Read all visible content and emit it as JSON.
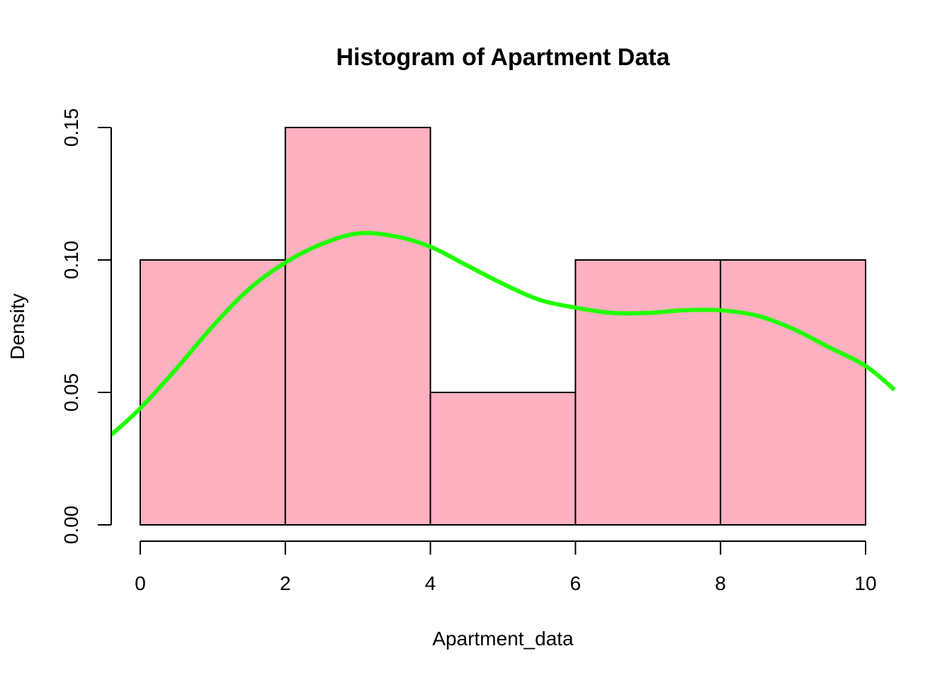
{
  "chart_data": {
    "type": "bar",
    "title": "Histogram of Apartment Data",
    "xlabel": "Apartment_data",
    "ylabel": "Density",
    "xlim": [
      0,
      10
    ],
    "ylim": [
      0,
      0.15
    ],
    "x_ticks": [
      0,
      2,
      4,
      6,
      8,
      10
    ],
    "x_tick_labels": [
      "0",
      "2",
      "4",
      "6",
      "8",
      "10"
    ],
    "y_ticks": [
      0,
      0.05,
      0.1,
      0.15
    ],
    "y_tick_labels": [
      "0.00",
      "0.05",
      "0.10",
      "0.15"
    ],
    "bins": [
      {
        "start": 0,
        "end": 2,
        "density": 0.1
      },
      {
        "start": 2,
        "end": 4,
        "density": 0.15
      },
      {
        "start": 4,
        "end": 6,
        "density": 0.05
      },
      {
        "start": 6,
        "end": 8,
        "density": 0.1
      },
      {
        "start": 8,
        "end": 10,
        "density": 0.1
      }
    ],
    "grid": false,
    "bar_color": "#FFB0C1",
    "density_curve": {
      "color": "#22FF00",
      "x": [
        -0.4,
        0,
        0.5,
        1,
        1.5,
        2,
        2.5,
        3,
        3.5,
        4,
        4.5,
        5,
        5.5,
        6,
        6.5,
        7,
        7.5,
        8,
        8.5,
        9,
        9.5,
        10,
        10.4
      ],
      "y": [
        0.034,
        0.044,
        0.059,
        0.075,
        0.089,
        0.099,
        0.106,
        0.11,
        0.109,
        0.105,
        0.098,
        0.091,
        0.085,
        0.082,
        0.08,
        0.08,
        0.081,
        0.081,
        0.079,
        0.074,
        0.067,
        0.06,
        0.051
      ]
    }
  }
}
